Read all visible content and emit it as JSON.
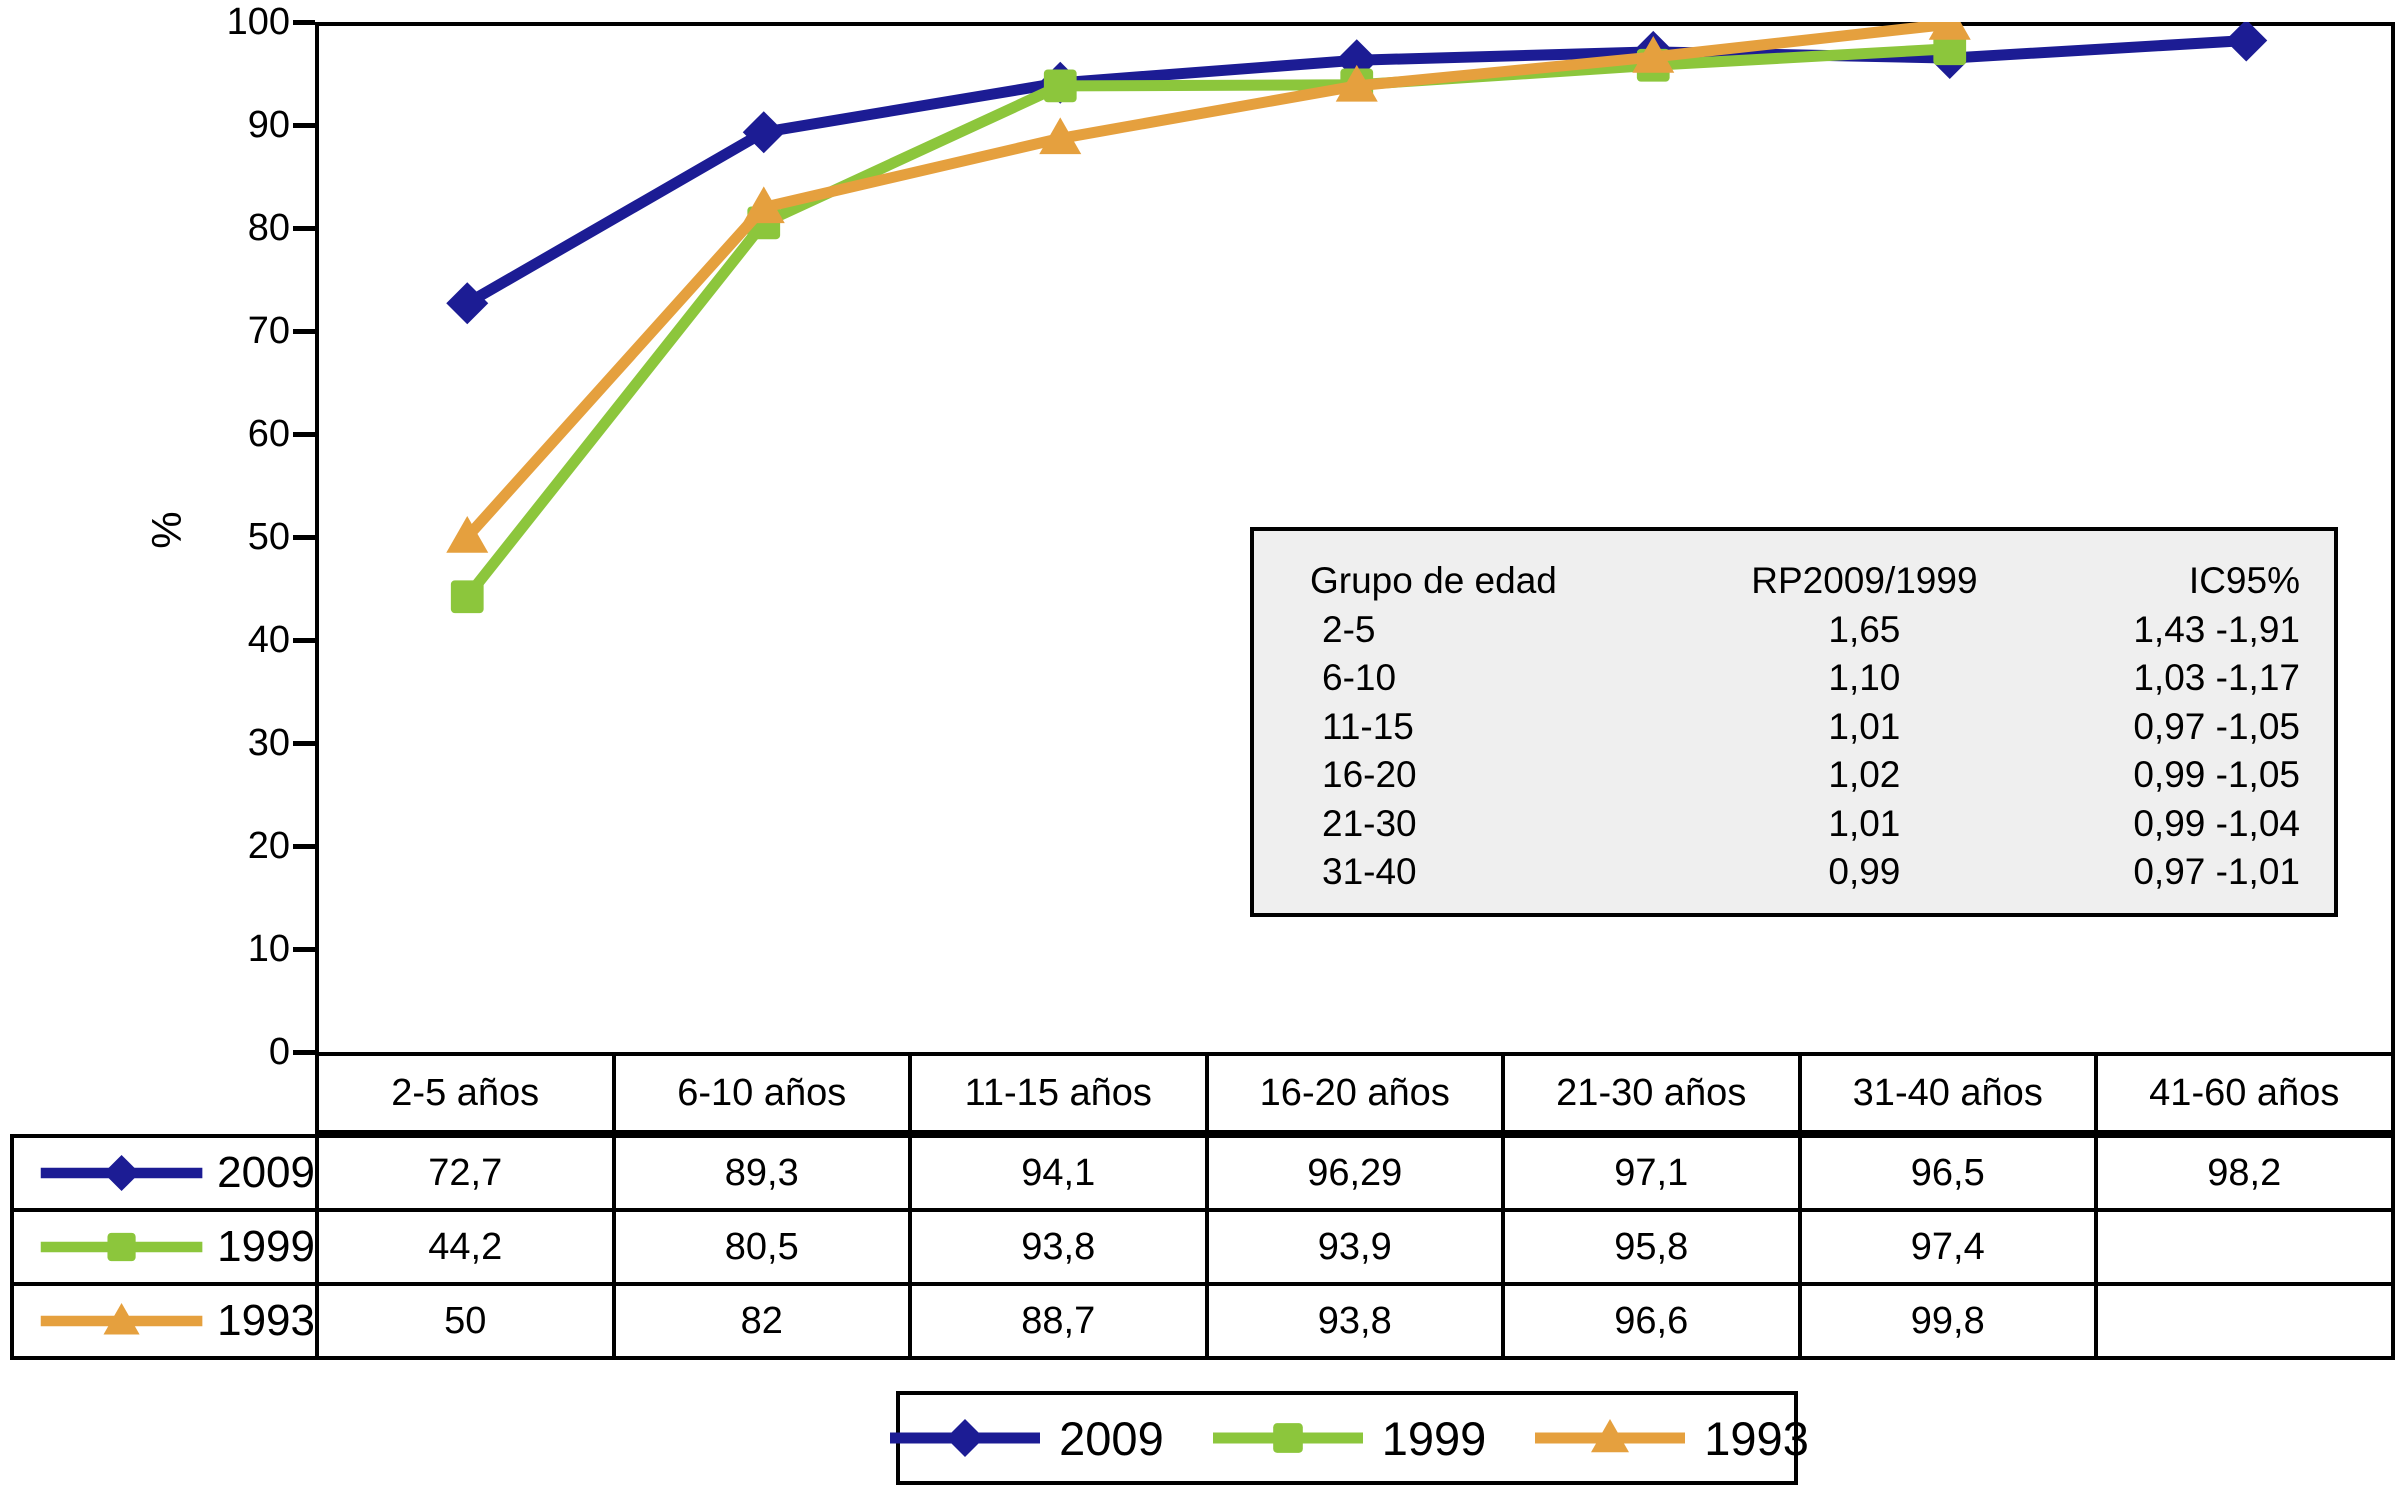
{
  "chart_data": {
    "type": "line",
    "title": "",
    "xlabel": "",
    "ylabel": "%",
    "ylim": [
      0,
      100
    ],
    "ytick_step": 10,
    "ytick_labels": [
      "0",
      "10",
      "20",
      "30",
      "40",
      "50",
      "60",
      "70",
      "80",
      "90",
      "100"
    ],
    "grid": false,
    "legend_position": "bottom",
    "categories": [
      "2-5 años",
      "6-10 años",
      "11-15 años",
      "16-20 años",
      "21-30 años",
      "31-40 años",
      "41-60 años"
    ],
    "series": [
      {
        "name": "2009",
        "marker": "diamond",
        "color": "#1c1c94",
        "values": [
          72.7,
          89.3,
          94.1,
          96.29,
          97.1,
          96.5,
          98.2
        ],
        "display_values": [
          "72,7",
          "89,3",
          "94,1",
          "96,29",
          "97,1",
          "96,5",
          "98,2"
        ]
      },
      {
        "name": "1999",
        "marker": "square",
        "color": "#8cc63c",
        "values": [
          44.2,
          80.5,
          93.8,
          93.9,
          95.8,
          97.4,
          null
        ],
        "display_values": [
          "44,2",
          "80,5",
          "93,8",
          "93,9",
          "95,8",
          "97,4",
          ""
        ]
      },
      {
        "name": "1993",
        "marker": "triangle",
        "color": "#e5a03e",
        "values": [
          50,
          82,
          88.7,
          93.8,
          96.6,
          99.8,
          null
        ],
        "display_values": [
          "50",
          "82",
          "88,7",
          "93,8",
          "96,6",
          "99,8",
          ""
        ]
      }
    ]
  },
  "inset_table": {
    "background": "#efefef",
    "columns": [
      "Grupo de edad",
      "RP2009/1999",
      "IC95%"
    ],
    "rows": [
      [
        "2-5",
        "1,65",
        "1,43 -1,91"
      ],
      [
        "6-10",
        "1,10",
        "1,03 -1,17"
      ],
      [
        "11-15",
        "1,01",
        "0,97 -1,05"
      ],
      [
        "16-20",
        "1,02",
        "0,99 -1,05"
      ],
      [
        "21-30",
        "1,01",
        "0,99 -1,04"
      ],
      [
        "31-40",
        "0,99",
        "0,97 -1,01"
      ]
    ]
  },
  "legend": {
    "items": [
      "2009",
      "1999",
      "1993"
    ]
  },
  "colors": {
    "axis": "#000000",
    "inset_background": "#efefef",
    "series_2009": "#1c1c94",
    "series_1999": "#8cc63c",
    "series_1993": "#e5a03e"
  }
}
